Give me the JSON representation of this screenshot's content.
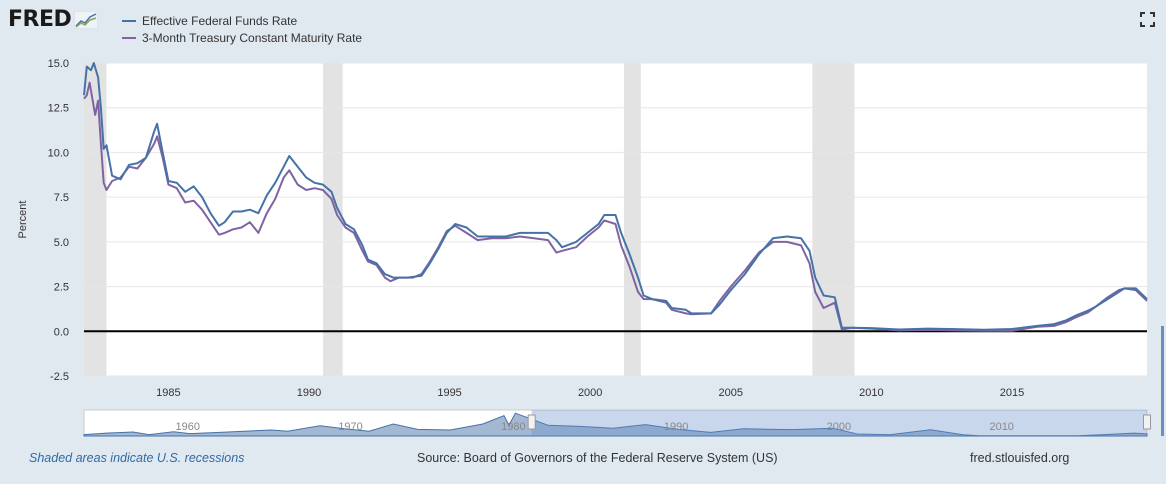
{
  "header": {
    "logo_text": "FRED",
    "logo_icon": "line-graph-icon",
    "fullscreen_icon": "fullscreen-icon"
  },
  "colors": {
    "background": "#e1e9f0",
    "plot_background": "#ffffff",
    "recession": "#e3e3e3",
    "series_fedfunds": "#4572a7",
    "series_tb3": "#8064a2",
    "navigator": "#b5c7e0"
  },
  "footer": {
    "recessions_note": "Shaded areas indicate U.S. recessions",
    "source": "Source: Board of Governors of the Federal Reserve System (US)",
    "site": "fred.stlouisfed.org"
  },
  "chart_data": {
    "type": "line",
    "title": "",
    "xlabel": "",
    "ylabel": "Percent",
    "xlim": [
      1982.0,
      2019.8
    ],
    "ylim": [
      -2.5,
      15.0
    ],
    "y_ticks": [
      "15.0",
      "12.5",
      "10.0",
      "7.5",
      "5.0",
      "2.5",
      "0.0",
      "-2.5"
    ],
    "x_ticks": [
      "1985",
      "1990",
      "1995",
      "2000",
      "2005",
      "2010",
      "2015"
    ],
    "grid": true,
    "legend_position": "top-left",
    "recessions": [
      [
        1982.0,
        1982.8
      ],
      [
        1990.5,
        1991.2
      ],
      [
        2001.2,
        2001.8
      ],
      [
        2007.9,
        2009.4
      ]
    ],
    "navigator": {
      "x_ticks": [
        "1960",
        "1970",
        "1980",
        "1990",
        "2000",
        "2010"
      ],
      "range": [
        1954.5,
        2019.8
      ],
      "selected": [
        1982.0,
        2019.8
      ]
    },
    "series": [
      {
        "name": "Effective Federal Funds Rate",
        "color": "#4572a7",
        "points": [
          [
            1982.0,
            13.2
          ],
          [
            1982.1,
            14.8
          ],
          [
            1982.25,
            14.6
          ],
          [
            1982.35,
            15.0
          ],
          [
            1982.5,
            14.2
          ],
          [
            1982.6,
            12.5
          ],
          [
            1982.7,
            10.2
          ],
          [
            1982.8,
            10.4
          ],
          [
            1983.0,
            8.7
          ],
          [
            1983.3,
            8.5
          ],
          [
            1983.6,
            9.3
          ],
          [
            1983.9,
            9.4
          ],
          [
            1984.2,
            9.7
          ],
          [
            1984.5,
            11.2
          ],
          [
            1984.6,
            11.6
          ],
          [
            1984.8,
            10.0
          ],
          [
            1985.0,
            8.4
          ],
          [
            1985.3,
            8.3
          ],
          [
            1985.6,
            7.8
          ],
          [
            1985.9,
            8.1
          ],
          [
            1986.2,
            7.5
          ],
          [
            1986.5,
            6.6
          ],
          [
            1986.8,
            5.9
          ],
          [
            1987.0,
            6.1
          ],
          [
            1987.3,
            6.7
          ],
          [
            1987.6,
            6.7
          ],
          [
            1987.9,
            6.8
          ],
          [
            1988.2,
            6.6
          ],
          [
            1988.5,
            7.6
          ],
          [
            1988.8,
            8.3
          ],
          [
            1989.1,
            9.2
          ],
          [
            1989.3,
            9.8
          ],
          [
            1989.6,
            9.2
          ],
          [
            1989.9,
            8.6
          ],
          [
            1990.2,
            8.3
          ],
          [
            1990.5,
            8.2
          ],
          [
            1990.8,
            7.8
          ],
          [
            1991.0,
            6.9
          ],
          [
            1991.3,
            6.0
          ],
          [
            1991.6,
            5.7
          ],
          [
            1991.9,
            4.8
          ],
          [
            1992.1,
            4.0
          ],
          [
            1992.4,
            3.8
          ],
          [
            1992.7,
            3.2
          ],
          [
            1993.0,
            3.0
          ],
          [
            1993.5,
            3.0
          ],
          [
            1994.0,
            3.1
          ],
          [
            1994.3,
            3.8
          ],
          [
            1994.6,
            4.6
          ],
          [
            1994.9,
            5.5
          ],
          [
            1995.2,
            6.0
          ],
          [
            1995.6,
            5.8
          ],
          [
            1996.0,
            5.3
          ],
          [
            1996.5,
            5.3
          ],
          [
            1997.0,
            5.3
          ],
          [
            1997.5,
            5.5
          ],
          [
            1998.0,
            5.5
          ],
          [
            1998.5,
            5.5
          ],
          [
            1998.8,
            5.1
          ],
          [
            1999.0,
            4.7
          ],
          [
            1999.5,
            5.0
          ],
          [
            1999.9,
            5.5
          ],
          [
            2000.3,
            6.0
          ],
          [
            2000.5,
            6.5
          ],
          [
            2000.9,
            6.5
          ],
          [
            2001.1,
            5.5
          ],
          [
            2001.4,
            4.3
          ],
          [
            2001.7,
            3.0
          ],
          [
            2001.9,
            2.0
          ],
          [
            2002.2,
            1.8
          ],
          [
            2002.7,
            1.7
          ],
          [
            2002.9,
            1.3
          ],
          [
            2003.4,
            1.2
          ],
          [
            2003.6,
            1.0
          ],
          [
            2004.3,
            1.0
          ],
          [
            2004.6,
            1.5
          ],
          [
            2005.0,
            2.3
          ],
          [
            2005.5,
            3.2
          ],
          [
            2006.0,
            4.3
          ],
          [
            2006.5,
            5.2
          ],
          [
            2007.0,
            5.3
          ],
          [
            2007.5,
            5.2
          ],
          [
            2007.8,
            4.5
          ],
          [
            2008.0,
            3.0
          ],
          [
            2008.3,
            2.0
          ],
          [
            2008.7,
            1.9
          ],
          [
            2008.95,
            0.2
          ],
          [
            2009.3,
            0.2
          ],
          [
            2010,
            0.18
          ],
          [
            2011,
            0.1
          ],
          [
            2012,
            0.15
          ],
          [
            2013,
            0.12
          ],
          [
            2014,
            0.09
          ],
          [
            2015.0,
            0.13
          ],
          [
            2015.9,
            0.3
          ],
          [
            2016.5,
            0.4
          ],
          [
            2016.9,
            0.6
          ],
          [
            2017.3,
            0.9
          ],
          [
            2017.7,
            1.15
          ],
          [
            2018.0,
            1.4
          ],
          [
            2018.4,
            1.8
          ],
          [
            2018.8,
            2.2
          ],
          [
            2019.0,
            2.4
          ],
          [
            2019.4,
            2.4
          ],
          [
            2019.6,
            2.1
          ],
          [
            2019.8,
            1.8
          ]
        ]
      },
      {
        "name": "3-Month Treasury Constant Maturity Rate",
        "color": "#8064a2",
        "points": [
          [
            1982.0,
            13.0
          ],
          [
            1982.1,
            13.2
          ],
          [
            1982.2,
            13.9
          ],
          [
            1982.4,
            12.1
          ],
          [
            1982.5,
            12.9
          ],
          [
            1982.6,
            10.5
          ],
          [
            1982.7,
            8.3
          ],
          [
            1982.8,
            7.9
          ],
          [
            1983.0,
            8.4
          ],
          [
            1983.3,
            8.6
          ],
          [
            1983.6,
            9.2
          ],
          [
            1983.9,
            9.1
          ],
          [
            1984.2,
            9.7
          ],
          [
            1984.5,
            10.5
          ],
          [
            1984.6,
            10.9
          ],
          [
            1984.8,
            9.7
          ],
          [
            1985.0,
            8.2
          ],
          [
            1985.3,
            8.0
          ],
          [
            1985.6,
            7.2
          ],
          [
            1985.9,
            7.3
          ],
          [
            1986.2,
            6.8
          ],
          [
            1986.5,
            6.1
          ],
          [
            1986.8,
            5.4
          ],
          [
            1987.0,
            5.5
          ],
          [
            1987.3,
            5.7
          ],
          [
            1987.6,
            5.8
          ],
          [
            1987.9,
            6.1
          ],
          [
            1988.2,
            5.5
          ],
          [
            1988.5,
            6.6
          ],
          [
            1988.8,
            7.4
          ],
          [
            1989.1,
            8.6
          ],
          [
            1989.3,
            9.0
          ],
          [
            1989.6,
            8.2
          ],
          [
            1989.9,
            7.9
          ],
          [
            1990.2,
            8.0
          ],
          [
            1990.5,
            7.9
          ],
          [
            1990.8,
            7.4
          ],
          [
            1991.0,
            6.5
          ],
          [
            1991.3,
            5.8
          ],
          [
            1991.6,
            5.5
          ],
          [
            1991.9,
            4.5
          ],
          [
            1992.1,
            3.9
          ],
          [
            1992.4,
            3.7
          ],
          [
            1992.7,
            3.0
          ],
          [
            1992.9,
            2.8
          ],
          [
            1993.2,
            3.0
          ],
          [
            1993.7,
            3.0
          ],
          [
            1994.0,
            3.2
          ],
          [
            1994.3,
            3.9
          ],
          [
            1994.6,
            4.7
          ],
          [
            1994.9,
            5.6
          ],
          [
            1995.2,
            5.9
          ],
          [
            1995.6,
            5.5
          ],
          [
            1996.0,
            5.1
          ],
          [
            1996.5,
            5.2
          ],
          [
            1997.0,
            5.2
          ],
          [
            1997.5,
            5.3
          ],
          [
            1998.0,
            5.2
          ],
          [
            1998.5,
            5.1
          ],
          [
            1998.8,
            4.4
          ],
          [
            1999.0,
            4.5
          ],
          [
            1999.5,
            4.7
          ],
          [
            1999.9,
            5.3
          ],
          [
            2000.3,
            5.8
          ],
          [
            2000.5,
            6.2
          ],
          [
            2000.9,
            6.0
          ],
          [
            2001.1,
            4.8
          ],
          [
            2001.4,
            3.6
          ],
          [
            2001.7,
            2.2
          ],
          [
            2001.9,
            1.8
          ],
          [
            2002.2,
            1.8
          ],
          [
            2002.7,
            1.6
          ],
          [
            2002.9,
            1.2
          ],
          [
            2003.4,
            1.0
          ],
          [
            2003.6,
            0.95
          ],
          [
            2004.3,
            1.0
          ],
          [
            2004.6,
            1.7
          ],
          [
            2005.0,
            2.5
          ],
          [
            2005.5,
            3.4
          ],
          [
            2006.0,
            4.4
          ],
          [
            2006.5,
            5.0
          ],
          [
            2007.0,
            5.0
          ],
          [
            2007.5,
            4.8
          ],
          [
            2007.8,
            3.8
          ],
          [
            2008.0,
            2.2
          ],
          [
            2008.3,
            1.3
          ],
          [
            2008.7,
            1.6
          ],
          [
            2008.95,
            0.1
          ],
          [
            2009.3,
            0.2
          ],
          [
            2010,
            0.15
          ],
          [
            2011,
            0.05
          ],
          [
            2012,
            0.08
          ],
          [
            2013,
            0.05
          ],
          [
            2014,
            0.03
          ],
          [
            2015.0,
            0.03
          ],
          [
            2015.9,
            0.25
          ],
          [
            2016.5,
            0.3
          ],
          [
            2016.9,
            0.5
          ],
          [
            2017.3,
            0.8
          ],
          [
            2017.7,
            1.05
          ],
          [
            2018.0,
            1.4
          ],
          [
            2018.4,
            1.9
          ],
          [
            2018.8,
            2.3
          ],
          [
            2019.0,
            2.4
          ],
          [
            2019.4,
            2.3
          ],
          [
            2019.6,
            2.0
          ],
          [
            2019.8,
            1.7
          ]
        ]
      }
    ]
  }
}
